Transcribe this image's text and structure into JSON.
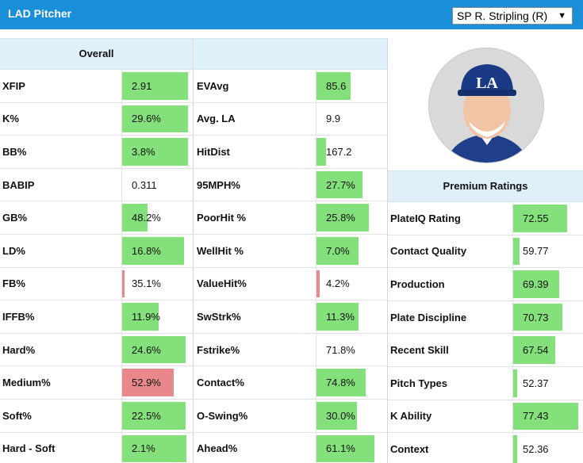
{
  "header": {
    "title": "LAD Pitcher",
    "pitcher_select": {
      "value": "SP R. Stripling (R)",
      "caret": "▼"
    }
  },
  "overall": {
    "header": "Overall",
    "rows": [
      {
        "label": "XFIP",
        "value": "2.91",
        "fill": 0.93,
        "color": "green"
      },
      {
        "label": "K%",
        "value": "29.6%",
        "fill": 0.93,
        "color": "green"
      },
      {
        "label": "BB%",
        "value": "3.8%",
        "fill": 0.93,
        "color": "green"
      },
      {
        "label": "BABIP",
        "value": "0.311",
        "fill": 0.0,
        "color": "green"
      },
      {
        "label": "GB%",
        "value": "48.2%",
        "fill": 0.36,
        "color": "green"
      },
      {
        "label": "LD%",
        "value": "16.8%",
        "fill": 0.88,
        "color": "green"
      },
      {
        "label": "FB%",
        "value": "35.1%",
        "fill": 0.03,
        "color": "red"
      },
      {
        "label": "IFFB%",
        "value": "11.9%",
        "fill": 0.52,
        "color": "green"
      },
      {
        "label": "Hard%",
        "value": "24.6%",
        "fill": 0.9,
        "color": "green"
      },
      {
        "label": "Medium%",
        "value": "52.9%",
        "fill": 0.73,
        "color": "red"
      },
      {
        "label": "Soft%",
        "value": "22.5%",
        "fill": 0.9,
        "color": "green"
      },
      {
        "label": "Hard - Soft",
        "value": "2.1%",
        "fill": 0.91,
        "color": "green"
      }
    ]
  },
  "contact": {
    "header": "",
    "rows": [
      {
        "label": "EVAvg",
        "value": "85.6",
        "fill": 0.48,
        "color": "green"
      },
      {
        "label": "Avg. LA",
        "value": "9.9",
        "fill": 0.0,
        "color": "green"
      },
      {
        "label": "HitDist",
        "value": "167.2",
        "fill": 0.14,
        "color": "green"
      },
      {
        "label": "95MPH%",
        "value": "27.7%",
        "fill": 0.65,
        "color": "green"
      },
      {
        "label": "PoorHit %",
        "value": "25.8%",
        "fill": 0.74,
        "color": "green"
      },
      {
        "label": "WellHit %",
        "value": "7.0%",
        "fill": 0.6,
        "color": "green"
      },
      {
        "label": "ValueHit%",
        "value": "4.2%",
        "fill": 0.04,
        "color": "red"
      },
      {
        "label": "SwStrk%",
        "value": "11.3%",
        "fill": 0.6,
        "color": "green"
      },
      {
        "label": "Fstrike%",
        "value": "71.8%",
        "fill": 0.0,
        "color": "green"
      },
      {
        "label": "Contact%",
        "value": "74.8%",
        "fill": 0.7,
        "color": "green"
      },
      {
        "label": "O-Swing%",
        "value": "30.0%",
        "fill": 0.57,
        "color": "green"
      },
      {
        "label": "Ahead%",
        "value": "61.1%",
        "fill": 0.82,
        "color": "green"
      }
    ]
  },
  "premium": {
    "header": "Premium Ratings",
    "rows": [
      {
        "label": "PlateIQ Rating",
        "value": "72.55",
        "fill": 0.77,
        "color": "green"
      },
      {
        "label": "Contact Quality",
        "value": "59.77",
        "fill": 0.09,
        "color": "green"
      },
      {
        "label": "Production",
        "value": "69.39",
        "fill": 0.66,
        "color": "green"
      },
      {
        "label": "Plate Discipline",
        "value": "70.73",
        "fill": 0.7,
        "color": "green"
      },
      {
        "label": "Recent Skill",
        "value": "67.54",
        "fill": 0.6,
        "color": "green"
      },
      {
        "label": "Pitch Types",
        "value": "52.37",
        "fill": 0.06,
        "color": "green"
      },
      {
        "label": "K Ability",
        "value": "77.43",
        "fill": 0.93,
        "color": "green"
      },
      {
        "label": "Context",
        "value": "52.36",
        "fill": 0.06,
        "color": "green"
      }
    ]
  },
  "colors": {
    "header_bg": "#1a8fd9",
    "head_cell_bg": "#dff0fb",
    "green": "#84e07a",
    "red": "#e8888a"
  }
}
